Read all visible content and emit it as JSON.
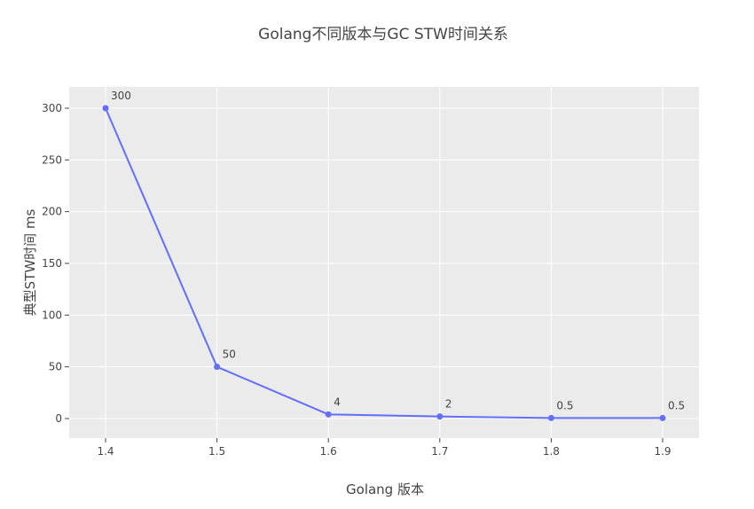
{
  "chart_data": {
    "type": "line",
    "title": "Golang不同版本与GC STW时间关系",
    "xlabel": "Golang 版本",
    "ylabel": "典型STW时间 ms",
    "categories": [
      "1.4",
      "1.5",
      "1.6",
      "1.7",
      "1.8",
      "1.9"
    ],
    "series": [
      {
        "values": [
          300,
          50,
          4,
          2,
          0.5,
          0.5
        ],
        "labels": [
          "300",
          "50",
          "4",
          "2",
          "0.5",
          "0.5"
        ],
        "color": "#636efa"
      }
    ],
    "yticks": [
      0,
      50,
      100,
      150,
      200,
      250,
      300
    ],
    "ytick_labels": [
      "0",
      "50",
      "100",
      "150",
      "200",
      "250",
      "300"
    ],
    "ylim": [
      -20,
      320
    ],
    "grid": true,
    "plot_bgcolor": "#ebebeb",
    "grid_color": "#ffffff"
  }
}
